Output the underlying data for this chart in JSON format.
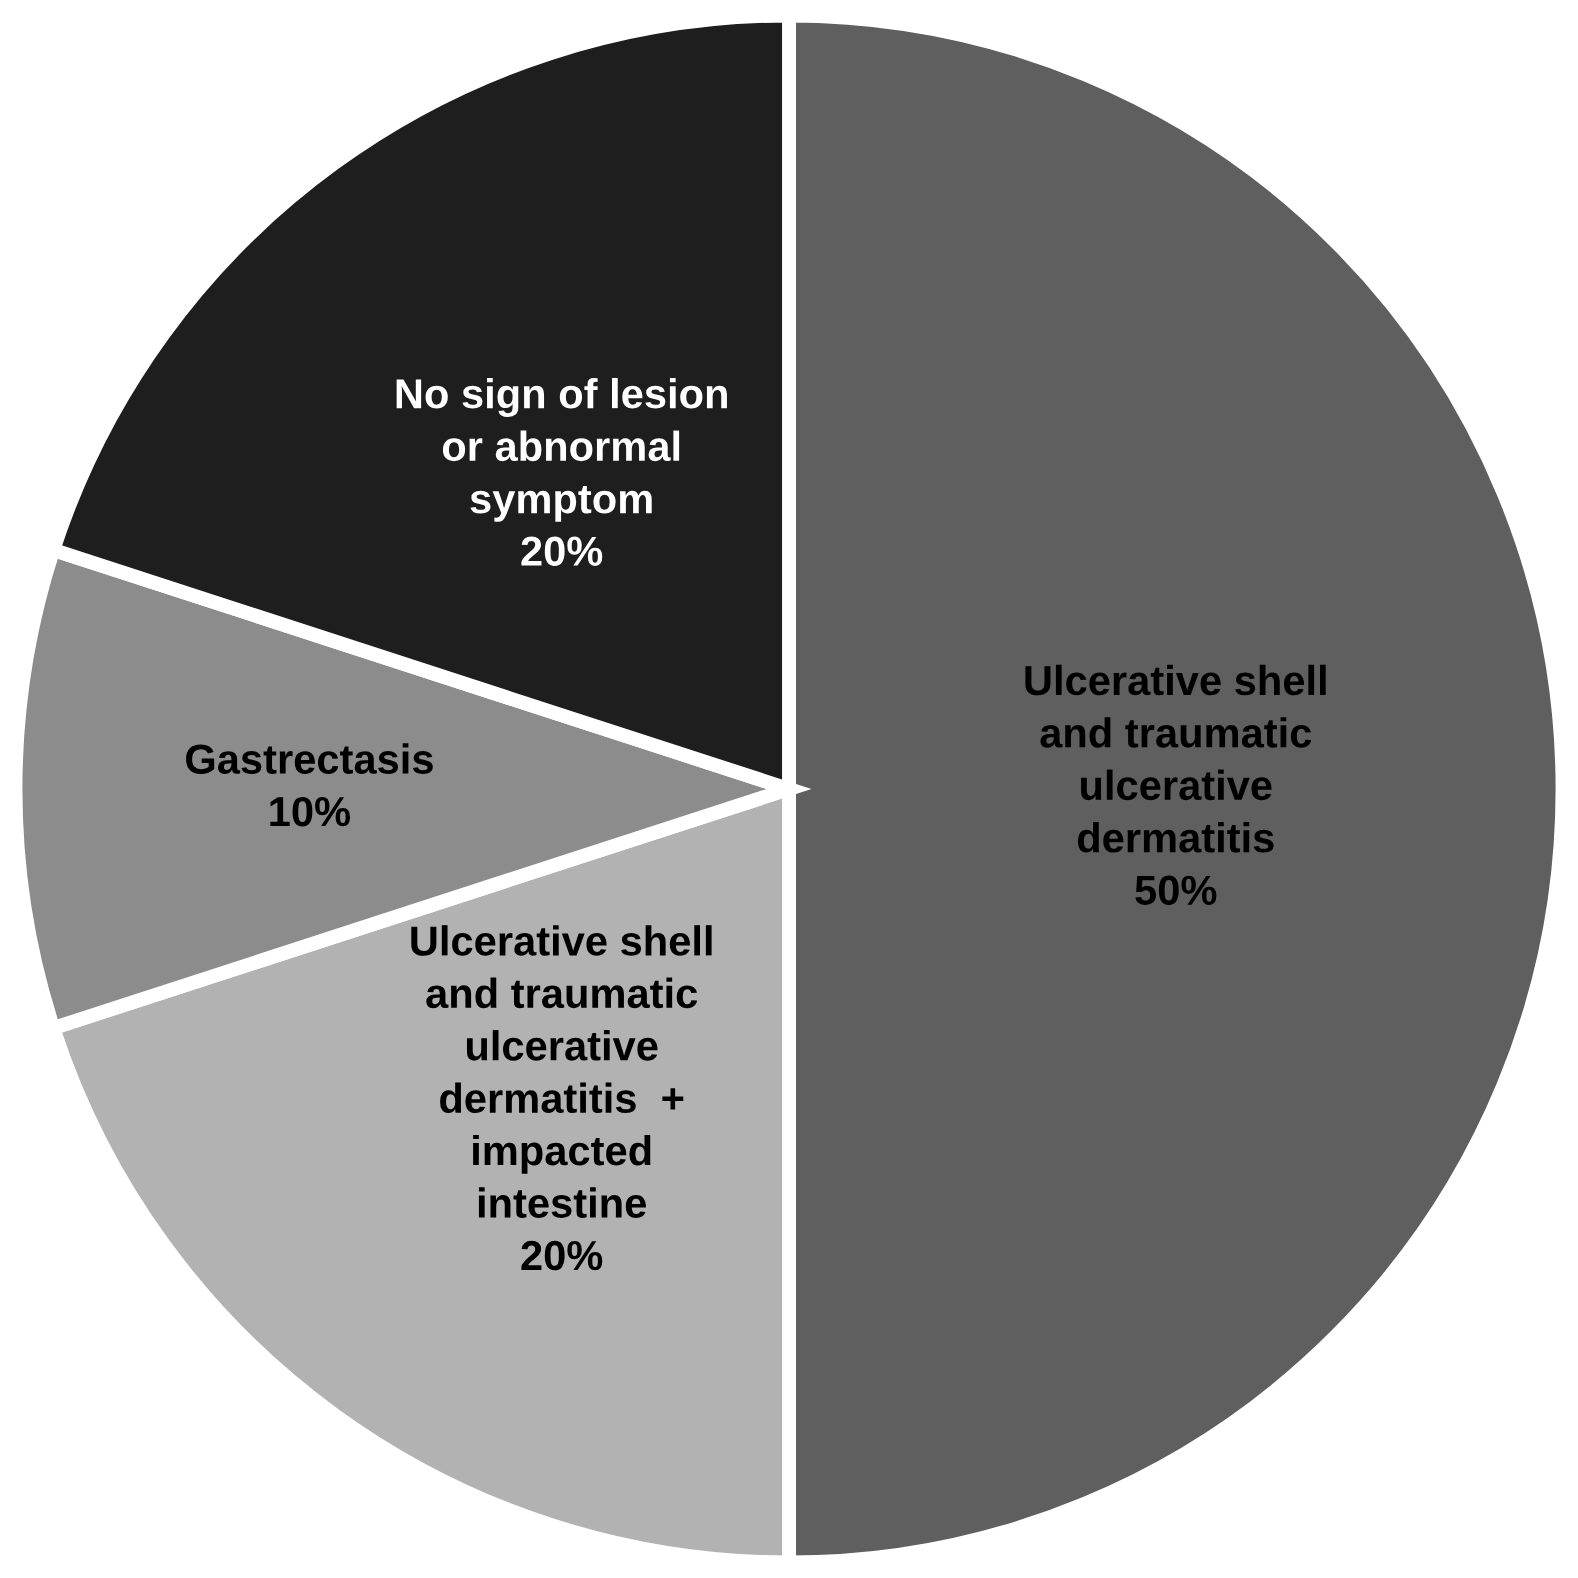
{
  "chart_data": {
    "type": "pie",
    "categories": [
      "Ulcerative shell\nand traumatic\nulcerative\ndermatitis",
      "Ulcerative shell\nand traumatic\nulcerative\ndermatitis  +\nimpacted\nintestine",
      "Gastrectasis",
      "No sign of lesion\nor abnormal\nsymptom"
    ],
    "values": [
      50,
      20,
      10,
      20
    ],
    "colors": [
      "#5f5f5f",
      "#b2b2b2",
      "#8c8c8c",
      "#1e1e1e"
    ],
    "value_labels": [
      "50%",
      "20%",
      "10%",
      "20%"
    ]
  }
}
